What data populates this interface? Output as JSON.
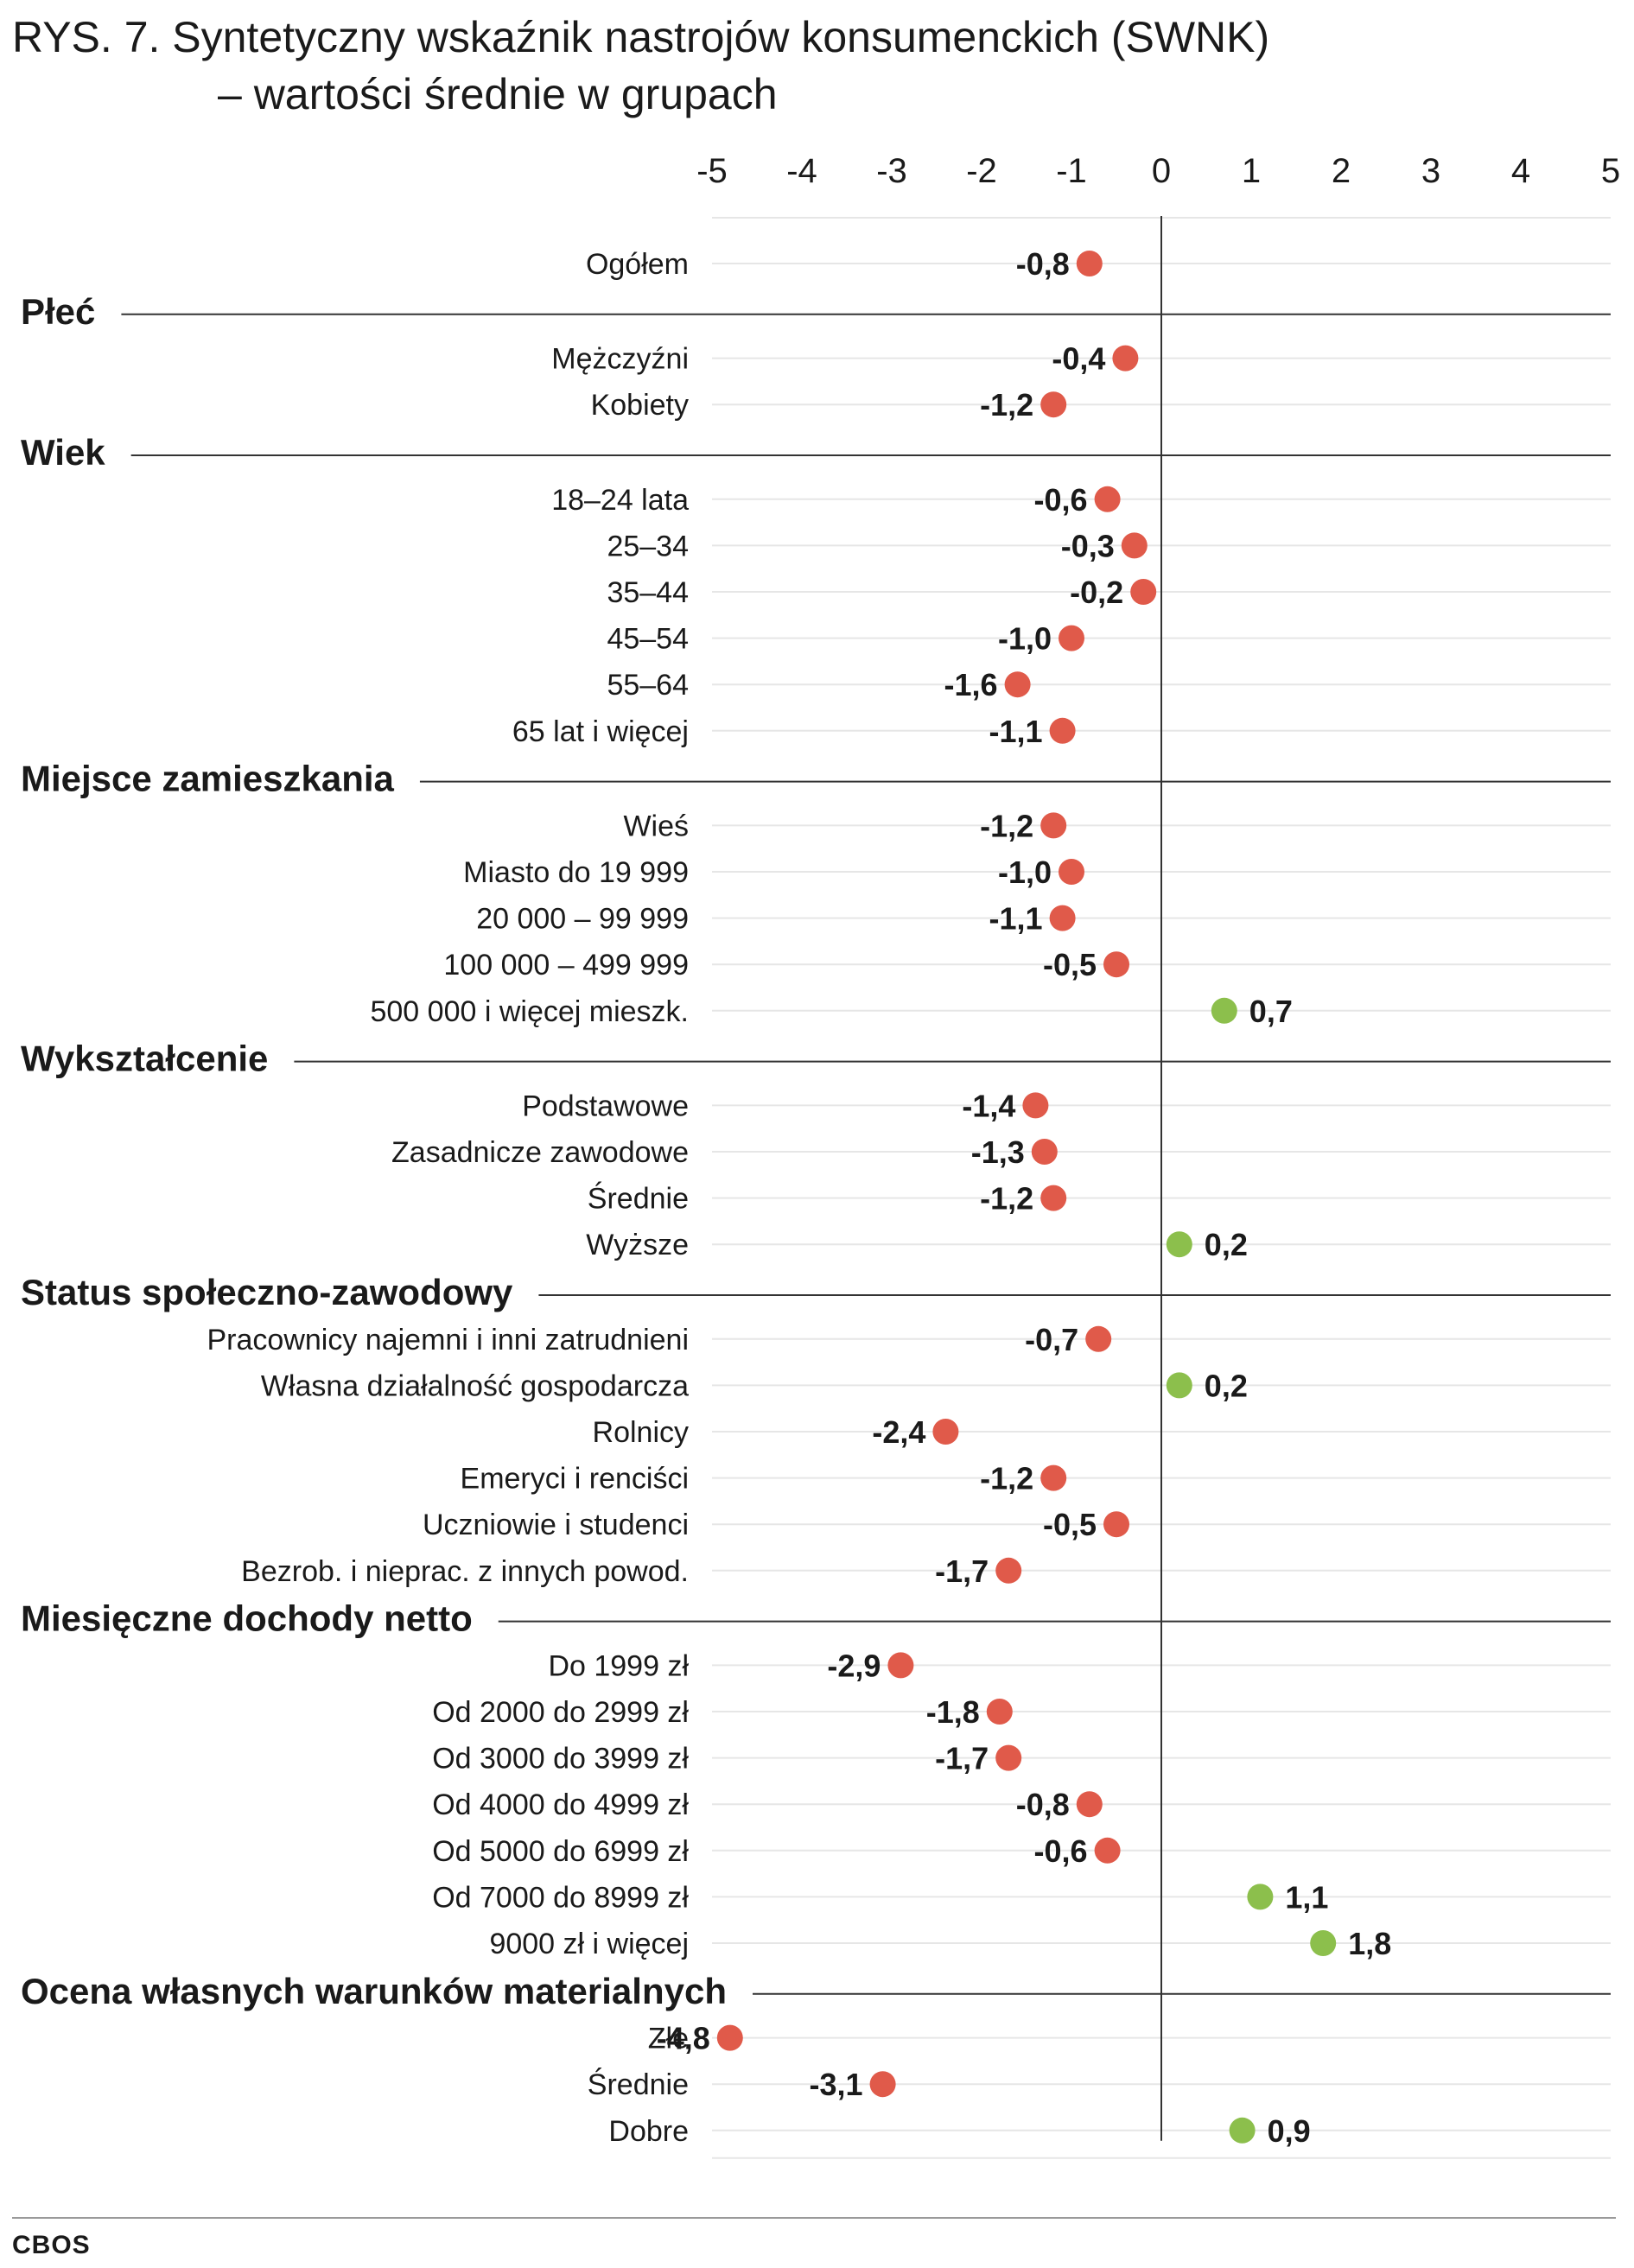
{
  "title_line1": "RYS. 7. Syntetyczny wskaźnik nastrojów konsumenckich (SWNK)",
  "title_line2": "– wartości średnie w grupach",
  "source": "CBOS",
  "colors": {
    "negative": "#e05a4a",
    "positive": "#8cbf4c",
    "axis": "#333333",
    "grid": "#e6e6e6",
    "rule": "#333333"
  },
  "chart_data": {
    "type": "scatter",
    "title": "Syntetyczny wskaźnik nastrojów konsumenckich (SWNK) – wartości średnie w grupach",
    "xlim": [
      -5,
      5
    ],
    "ticks": [
      -5,
      -4,
      -3,
      -2,
      -1,
      0,
      1,
      2,
      3,
      4,
      5
    ],
    "tick_labels": [
      "-5",
      "-4",
      "-3",
      "-2",
      "-1",
      "0",
      "1",
      "2",
      "3",
      "4",
      "5"
    ],
    "legend": "none",
    "grid": true,
    "rows": [
      {
        "kind": "item",
        "label": "Ogółem",
        "value": -0.8,
        "value_label": "-0,8"
      },
      {
        "kind": "header",
        "label": "Płeć"
      },
      {
        "kind": "item",
        "label": "Mężczyźni",
        "value": -0.4,
        "value_label": "-0,4"
      },
      {
        "kind": "item",
        "label": "Kobiety",
        "value": -1.2,
        "value_label": "-1,2"
      },
      {
        "kind": "header",
        "label": "Wiek"
      },
      {
        "kind": "item",
        "label": "18–24 lata",
        "value": -0.6,
        "value_label": "-0,6"
      },
      {
        "kind": "item",
        "label": "25–34",
        "value": -0.3,
        "value_label": "-0,3"
      },
      {
        "kind": "item",
        "label": "35–44",
        "value": -0.2,
        "value_label": "-0,2"
      },
      {
        "kind": "item",
        "label": "45–54",
        "value": -1.0,
        "value_label": "-1,0"
      },
      {
        "kind": "item",
        "label": "55–64",
        "value": -1.6,
        "value_label": "-1,6"
      },
      {
        "kind": "item",
        "label": "65 lat i więcej",
        "value": -1.1,
        "value_label": "-1,1"
      },
      {
        "kind": "header",
        "label": "Miejsce zamieszkania"
      },
      {
        "kind": "item",
        "label": "Wieś",
        "value": -1.2,
        "value_label": "-1,2"
      },
      {
        "kind": "item",
        "label": "Miasto do 19 999",
        "value": -1.0,
        "value_label": "-1,0"
      },
      {
        "kind": "item",
        "label": "20 000 – 99 999",
        "value": -1.1,
        "value_label": "-1,1"
      },
      {
        "kind": "item",
        "label": "100 000 – 499 999",
        "value": -0.5,
        "value_label": "-0,5"
      },
      {
        "kind": "item",
        "label": "500 000 i więcej mieszk.",
        "value": 0.7,
        "value_label": "0,7"
      },
      {
        "kind": "header",
        "label": "Wykształcenie"
      },
      {
        "kind": "item",
        "label": "Podstawowe",
        "value": -1.4,
        "value_label": "-1,4"
      },
      {
        "kind": "item",
        "label": "Zasadnicze zawodowe",
        "value": -1.3,
        "value_label": "-1,3"
      },
      {
        "kind": "item",
        "label": "Średnie",
        "value": -1.2,
        "value_label": "-1,2"
      },
      {
        "kind": "item",
        "label": "Wyższe",
        "value": 0.2,
        "value_label": "0,2"
      },
      {
        "kind": "header",
        "label": "Status społeczno-zawodowy"
      },
      {
        "kind": "item",
        "label": "Pracownicy najemni i inni zatrudnieni",
        "value": -0.7,
        "value_label": "-0,7"
      },
      {
        "kind": "item",
        "label": "Własna działalność gospodarcza",
        "value": 0.2,
        "value_label": "0,2"
      },
      {
        "kind": "item",
        "label": "Rolnicy",
        "value": -2.4,
        "value_label": "-2,4"
      },
      {
        "kind": "item",
        "label": "Emeryci i renciści",
        "value": -1.2,
        "value_label": "-1,2"
      },
      {
        "kind": "item",
        "label": "Uczniowie i studenci",
        "value": -0.5,
        "value_label": "-0,5"
      },
      {
        "kind": "item",
        "label": "Bezrob. i nieprac. z innych powod.",
        "value": -1.7,
        "value_label": "-1,7"
      },
      {
        "kind": "header",
        "label": "Miesięczne dochody netto"
      },
      {
        "kind": "item",
        "label": "Do 1999 zł",
        "value": -2.9,
        "value_label": "-2,9"
      },
      {
        "kind": "item",
        "label": "Od 2000 do 2999 zł",
        "value": -1.8,
        "value_label": "-1,8"
      },
      {
        "kind": "item",
        "label": "Od 3000 do 3999 zł",
        "value": -1.7,
        "value_label": "-1,7"
      },
      {
        "kind": "item",
        "label": "Od 4000 do 4999 zł",
        "value": -0.8,
        "value_label": "-0,8"
      },
      {
        "kind": "item",
        "label": "Od 5000 do 6999 zł",
        "value": -0.6,
        "value_label": "-0,6"
      },
      {
        "kind": "item",
        "label": "Od 7000 do 8999 zł",
        "value": 1.1,
        "value_label": "1,1"
      },
      {
        "kind": "item",
        "label": "9000 zł i więcej",
        "value": 1.8,
        "value_label": "1,8"
      },
      {
        "kind": "header",
        "label": "Ocena własnych warunków materialnych"
      },
      {
        "kind": "item",
        "label": "Złe",
        "value": -4.8,
        "value_label": "-4,8"
      },
      {
        "kind": "item",
        "label": "Średnie",
        "value": -3.1,
        "value_label": "-3,1"
      },
      {
        "kind": "item",
        "label": "Dobre",
        "value": 0.9,
        "value_label": "0,9"
      }
    ]
  }
}
